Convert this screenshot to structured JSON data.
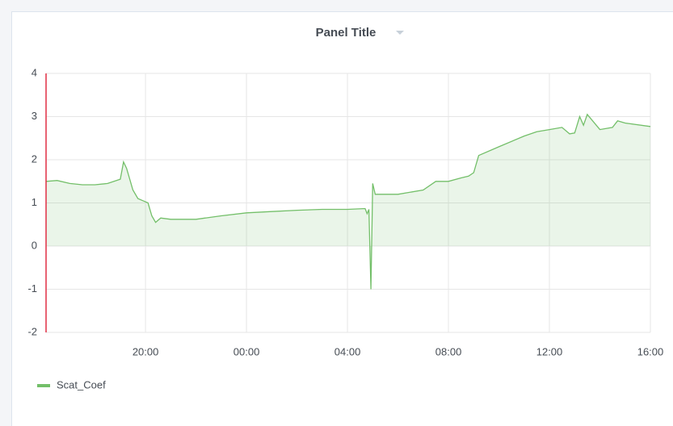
{
  "chart_data": {
    "type": "line",
    "title": "Panel Title",
    "x": [
      16.06,
      16.5,
      17.0,
      17.5,
      18.0,
      18.5,
      19.0,
      19.13,
      19.25,
      19.5,
      19.7,
      19.9,
      20.1,
      20.25,
      20.4,
      20.6,
      21.0,
      22.0,
      23.0,
      24.0,
      25.0,
      26.0,
      27.0,
      28.0,
      28.7,
      28.78,
      28.85,
      28.93,
      29.0,
      29.1,
      30.0,
      31.0,
      31.5,
      32.0,
      32.5,
      32.8,
      33.0,
      33.2,
      34.0,
      35.0,
      35.5,
      36.0,
      36.5,
      36.8,
      37.0,
      37.2,
      37.35,
      37.5,
      38.0,
      38.5,
      38.7,
      39.0,
      40.0
    ],
    "series": [
      {
        "name": "Scat_Coef",
        "color": "#73bf69",
        "values": [
          1.5,
          1.52,
          1.45,
          1.42,
          1.42,
          1.45,
          1.55,
          1.95,
          1.8,
          1.3,
          1.1,
          1.05,
          1.0,
          0.7,
          0.55,
          0.65,
          0.62,
          0.62,
          0.7,
          0.77,
          0.8,
          0.83,
          0.85,
          0.85,
          0.87,
          0.75,
          0.85,
          -1.0,
          1.45,
          1.2,
          1.2,
          1.3,
          1.5,
          1.5,
          1.58,
          1.62,
          1.7,
          2.1,
          2.3,
          2.55,
          2.65,
          2.7,
          2.75,
          2.6,
          2.62,
          3.0,
          2.8,
          3.05,
          2.7,
          2.75,
          2.9,
          2.85,
          2.77
        ]
      }
    ],
    "xlim": [
      16.06,
      40
    ],
    "xticks": [
      {
        "value": 20,
        "label": "20:00"
      },
      {
        "value": 24,
        "label": "00:00"
      },
      {
        "value": 28,
        "label": "04:00"
      },
      {
        "value": 32,
        "label": "08:00"
      },
      {
        "value": 36,
        "label": "12:00"
      },
      {
        "value": 40,
        "label": "16:00"
      }
    ],
    "ylim": [
      -2,
      4
    ],
    "yticks": [
      -2,
      -1,
      0,
      1,
      2,
      3,
      4
    ],
    "grid": true,
    "legend": "bottom-left"
  }
}
